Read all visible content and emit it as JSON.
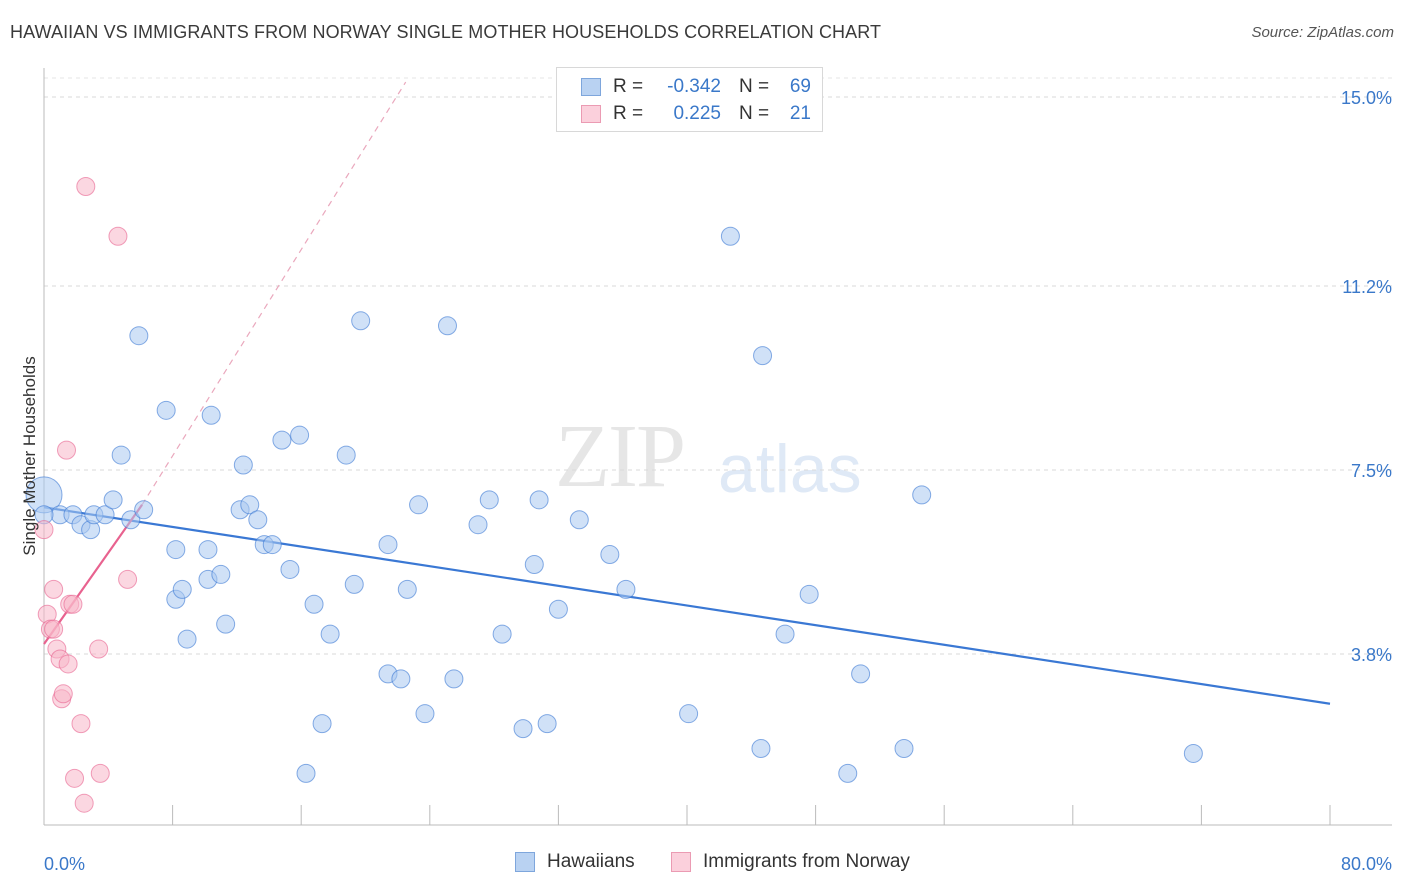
{
  "title": "HAWAIIAN VS IMMIGRANTS FROM NORWAY SINGLE MOTHER HOUSEHOLDS CORRELATION CHART",
  "source": "Source: ZipAtlas.com",
  "watermark": {
    "zip": "ZIP",
    "atlas": "atlas"
  },
  "legend": {
    "r_label": "R =",
    "n_label": "N =",
    "rows": [
      {
        "r": "-0.342",
        "n": "69",
        "color": "#a9c8f0"
      },
      {
        "r": "0.225",
        "n": "21",
        "color": "#f7b6c8"
      }
    ]
  },
  "bottom_legend": [
    "Hawaiians",
    "Immigrants from Norway"
  ],
  "chart_data": {
    "type": "scatter",
    "title": "HAWAIIAN VS IMMIGRANTS FROM NORWAY SINGLE MOTHER HOUSEHOLDS CORRELATION CHART",
    "xlabel": "",
    "ylabel": "Single Mother Households",
    "xlim": [
      0,
      80
    ],
    "ylim": [
      0,
      15.5
    ],
    "x_tick_labels": [
      "0.0%",
      "80.0%"
    ],
    "y_ticks": [
      3.8,
      7.5,
      11.2,
      15.0
    ],
    "y_tick_labels": [
      "3.8%",
      "7.5%",
      "11.2%",
      "15.0%"
    ],
    "grid": "horizontal dashed",
    "series": [
      {
        "name": "Hawaiians",
        "color": "#3a78d4",
        "fill": "#a9c8f0",
        "trend": {
          "x0": 0,
          "y0": 6.75,
          "x1": 80,
          "y1": 2.8
        },
        "points": [
          [
            0.0,
            7.0
          ],
          [
            1.0,
            6.6
          ],
          [
            1.8,
            6.6
          ],
          [
            2.3,
            6.4
          ],
          [
            2.9,
            6.3
          ],
          [
            3.1,
            6.6
          ],
          [
            3.8,
            6.6
          ],
          [
            4.3,
            6.9
          ],
          [
            4.8,
            7.8
          ],
          [
            5.4,
            6.5
          ],
          [
            6.2,
            6.7
          ],
          [
            5.9,
            10.2
          ],
          [
            7.6,
            8.7
          ],
          [
            8.2,
            4.9
          ],
          [
            8.6,
            5.1
          ],
          [
            8.2,
            5.9
          ],
          [
            10.2,
            5.3
          ],
          [
            10.2,
            5.9
          ],
          [
            8.9,
            4.1
          ],
          [
            10.4,
            8.6
          ],
          [
            11.0,
            5.4
          ],
          [
            11.3,
            4.4
          ],
          [
            12.2,
            6.7
          ],
          [
            12.4,
            7.6
          ],
          [
            12.8,
            6.8
          ],
          [
            13.3,
            6.5
          ],
          [
            13.7,
            6.0
          ],
          [
            14.2,
            6.0
          ],
          [
            14.8,
            8.1
          ],
          [
            15.3,
            5.5
          ],
          [
            15.9,
            8.2
          ],
          [
            16.8,
            4.8
          ],
          [
            17.3,
            2.4
          ],
          [
            17.8,
            4.2
          ],
          [
            18.8,
            7.8
          ],
          [
            19.3,
            5.2
          ],
          [
            19.7,
            10.5
          ],
          [
            21.4,
            3.4
          ],
          [
            21.4,
            6.0
          ],
          [
            22.2,
            3.3
          ],
          [
            22.6,
            5.1
          ],
          [
            23.3,
            6.8
          ],
          [
            23.7,
            2.6
          ],
          [
            25.1,
            10.4
          ],
          [
            25.5,
            3.3
          ],
          [
            27.0,
            6.4
          ],
          [
            27.7,
            6.9
          ],
          [
            28.5,
            4.2
          ],
          [
            29.8,
            2.3
          ],
          [
            30.5,
            5.6
          ],
          [
            30.8,
            6.9
          ],
          [
            31.3,
            2.4
          ],
          [
            32.0,
            4.7
          ],
          [
            33.3,
            6.5
          ],
          [
            35.2,
            5.8
          ],
          [
            36.2,
            5.1
          ],
          [
            40.1,
            2.6
          ],
          [
            42.7,
            12.2
          ],
          [
            44.7,
            9.8
          ],
          [
            44.6,
            1.9
          ],
          [
            46.1,
            4.2
          ],
          [
            47.6,
            5.0
          ],
          [
            50.0,
            1.4
          ],
          [
            50.8,
            3.4
          ],
          [
            53.5,
            1.9
          ],
          [
            54.6,
            7.0
          ],
          [
            16.3,
            1.4
          ],
          [
            71.5,
            1.8
          ],
          [
            0.0,
            6.6
          ]
        ]
      },
      {
        "name": "Immigrants from Norway",
        "color": "#e8628f",
        "fill": "#f7b6c8",
        "trend": {
          "x0": 0,
          "y0": 4.0,
          "x1": 6.1,
          "y1": 6.8
        },
        "trend_ext": {
          "x0": 6.1,
          "y0": 6.8,
          "x1": 22.5,
          "y1": 15.3
        },
        "points": [
          [
            2.6,
            13.2
          ],
          [
            4.6,
            12.2
          ],
          [
            0.0,
            6.3
          ],
          [
            1.4,
            7.9
          ],
          [
            0.6,
            5.1
          ],
          [
            1.6,
            4.8
          ],
          [
            1.8,
            4.8
          ],
          [
            5.2,
            5.3
          ],
          [
            0.2,
            4.6
          ],
          [
            0.4,
            4.3
          ],
          [
            0.6,
            4.3
          ],
          [
            0.8,
            3.9
          ],
          [
            1.0,
            3.7
          ],
          [
            1.5,
            3.6
          ],
          [
            3.4,
            3.9
          ],
          [
            1.1,
            2.9
          ],
          [
            1.2,
            3.0
          ],
          [
            2.3,
            2.4
          ],
          [
            1.9,
            1.3
          ],
          [
            3.5,
            1.4
          ],
          [
            2.5,
            0.8
          ]
        ]
      }
    ]
  }
}
